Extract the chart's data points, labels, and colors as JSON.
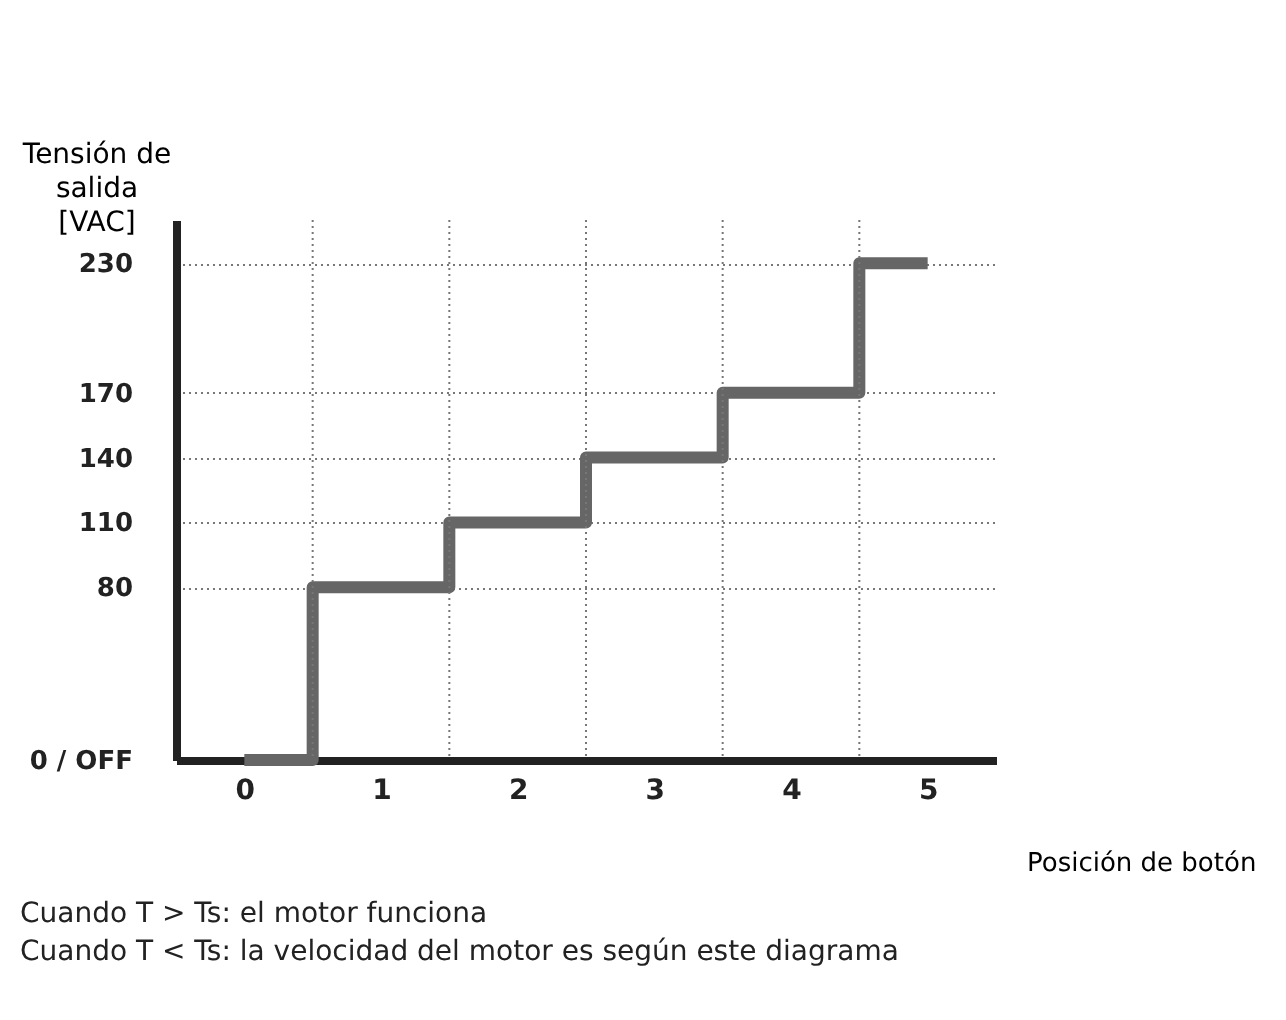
{
  "chart_data": {
    "type": "step",
    "categories": [
      "0",
      "1",
      "2",
      "3",
      "4",
      "5"
    ],
    "series": [
      {
        "color": "#666666",
        "values": [
          0,
          80,
          110,
          140,
          170,
          230
        ]
      }
    ],
    "ylim": [
      0,
      250
    ],
    "yticks": [
      {
        "value": 0,
        "label": "0 / OFF"
      },
      80,
      110,
      140,
      170,
      230
    ],
    "ylabel": "Tensión de salida [VAC]",
    "xlabel": "Posición de botón",
    "grid": true,
    "annotations": [
      "Cuando T > Ts: el motor funciona",
      "Cuando T < Ts: la velocidad del motor es según este diagrama"
    ]
  }
}
